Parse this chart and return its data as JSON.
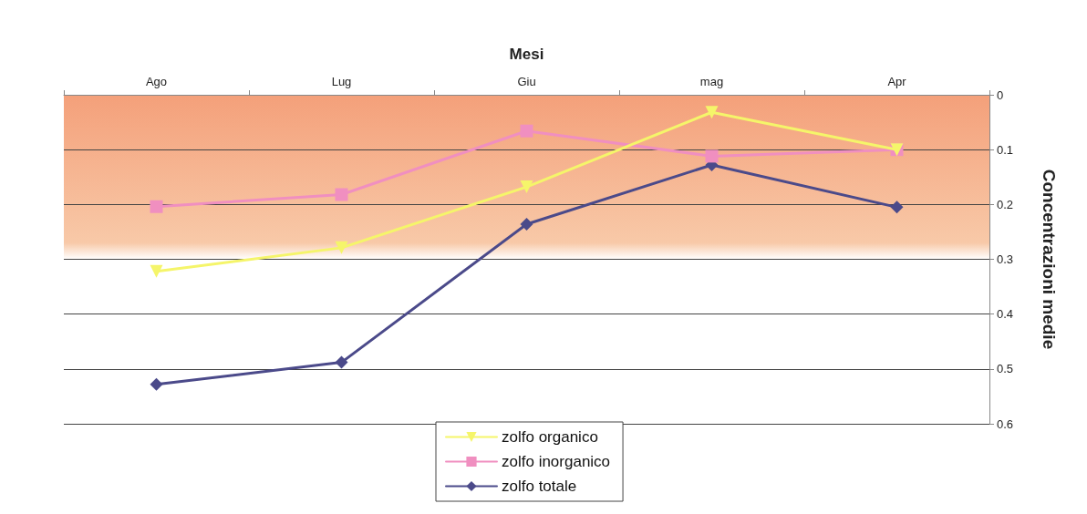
{
  "chart_data": {
    "type": "line",
    "xlabel": "Mesi",
    "ylabel": "Concentrazioni medie",
    "categories": [
      "Ago",
      "Lug",
      "Giu",
      "mag",
      "Apr"
    ],
    "series": [
      {
        "name": "zolfo organico",
        "color": "#f5f56a",
        "marker": "triangle",
        "values": [
          0.322,
          0.279,
          0.168,
          0.032,
          0.1
        ]
      },
      {
        "name": "zolfo inorganico",
        "color": "#f08fc0",
        "marker": "square",
        "values": [
          0.204,
          0.182,
          0.066,
          0.112,
          0.1
        ]
      },
      {
        "name": "zolfo totale",
        "color": "#4b4a8a",
        "marker": "diamond",
        "values": [
          0.528,
          0.488,
          0.236,
          0.128,
          0.205
        ]
      }
    ],
    "ylim": [
      0.6,
      0
    ],
    "yticks": [
      0,
      0.1,
      0.2,
      0.3,
      0.4,
      0.5,
      0.6
    ],
    "grid": "y",
    "legend": "bottom"
  }
}
